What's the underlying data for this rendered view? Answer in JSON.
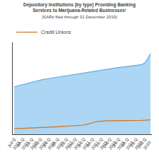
{
  "chart_data": {
    "type": "line",
    "title": "Depository Institutions (by type) Providing Banking\nServices to Marijuana-Related Businesses¹",
    "subtitle": "(SARs filed through 31 December 2019)",
    "categories": [
      "3rd Q\n2015",
      null,
      null,
      "4th Q\n2015",
      null,
      null,
      "1st Q\n2016",
      null,
      null,
      "2nd Q\n2016",
      null,
      null,
      "3rd Q\n2016",
      null,
      null,
      "4th Q\n2016",
      null,
      null,
      "1st Q\n2017",
      null,
      null,
      "2nd Q\n2017",
      null,
      null,
      "3rd Q\n2017",
      null,
      null,
      "4th Q\n2017",
      null,
      null,
      "1st Q\n2018",
      null,
      null,
      "2nd Q\n2018",
      null,
      null,
      "3rd Q\n2018",
      null,
      null,
      "4th Q\n2018",
      null,
      null,
      "1st Q\n2019",
      null,
      null,
      "2nd Q\n2019",
      null,
      null
    ],
    "series": [
      {
        "type": "area",
        "color": "#5aade8",
        "values": [
          300,
          304,
          308,
          313,
          318,
          323,
          328,
          333,
          338,
          342,
          346,
          349,
          352,
          355,
          358,
          361,
          364,
          367,
          370,
          373,
          376,
          379,
          382,
          385,
          388,
          391,
          394,
          397,
          400,
          403,
          406,
          409,
          412,
          415,
          417,
          419,
          421,
          423,
          425,
          427,
          429,
          431,
          433,
          435,
          440,
          450,
          475,
          510
        ]
      },
      {
        "name": "Credit Unions",
        "type": "line",
        "color": "#d4721a",
        "values": [
          35,
          36,
          37,
          37,
          37,
          38,
          38,
          39,
          40,
          41,
          42,
          43,
          44,
          45,
          46,
          47,
          48,
          49,
          50,
          51,
          52,
          53,
          54,
          56,
          58,
          62,
          68,
          74,
          78,
          81,
          83,
          84,
          85,
          85,
          85,
          86,
          86,
          86,
          87,
          87,
          87,
          87,
          88,
          88,
          88,
          89,
          90,
          91
        ]
      }
    ],
    "ylim": [
      0,
      580
    ],
    "grid": false,
    "legend": "upper left",
    "tick_labels": "x"
  }
}
